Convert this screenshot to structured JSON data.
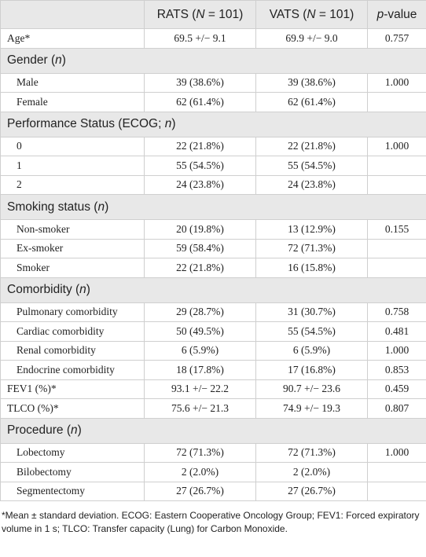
{
  "table": {
    "columns": [
      [
        "RATS (",
        "N",
        " = 101)"
      ],
      [
        "VATS (",
        "N",
        " = 101)"
      ],
      [
        "",
        "p",
        "-value"
      ]
    ],
    "rows": [
      {
        "cells": [
          "Age*",
          "69.5 +/− 9.1",
          "69.9 +/− 9.0",
          "0.757"
        ],
        "indent": false
      },
      {
        "section": [
          "Gender (",
          "n",
          ")"
        ]
      },
      {
        "cells": [
          "Male",
          "39 (38.6%)",
          "39 (38.6%)",
          "1.000"
        ],
        "indent": true
      },
      {
        "cells": [
          "Female",
          "62 (61.4%)",
          "62 (61.4%)"
        ],
        "indent": true
      },
      {
        "section": [
          "Performance Status (ECOG; ",
          "n",
          ")"
        ]
      },
      {
        "cells": [
          "0",
          "22 (21.8%)",
          "22 (21.8%)",
          "1.000"
        ],
        "indent": true
      },
      {
        "cells": [
          "1",
          "55 (54.5%)",
          "55 (54.5%)"
        ],
        "indent": true
      },
      {
        "cells": [
          "2",
          "24 (23.8%)",
          "24 (23.8%)"
        ],
        "indent": true
      },
      {
        "section": [
          "Smoking status (",
          "n",
          ")"
        ]
      },
      {
        "cells": [
          "Non-smoker",
          "20 (19.8%)",
          "13 (12.9%)",
          "0.155"
        ],
        "indent": true
      },
      {
        "cells": [
          "Ex-smoker",
          "59 (58.4%)",
          "72 (71.3%)"
        ],
        "indent": true
      },
      {
        "cells": [
          "Smoker",
          "22 (21.8%)",
          "16 (15.8%)"
        ],
        "indent": true
      },
      {
        "section": [
          "Comorbidity (",
          "n",
          ")"
        ]
      },
      {
        "cells": [
          "Pulmonary comorbidity",
          "29 (28.7%)",
          "31 (30.7%)",
          "0.758"
        ],
        "indent": true
      },
      {
        "cells": [
          "Cardiac comorbidity",
          "50 (49.5%)",
          "55 (54.5%)",
          "0.481"
        ],
        "indent": true
      },
      {
        "cells": [
          "Renal comorbidity",
          "6 (5.9%)",
          "6 (5.9%)",
          "1.000"
        ],
        "indent": true
      },
      {
        "cells": [
          "Endocrine comorbidity",
          "18 (17.8%)",
          "17 (16.8%)",
          "0.853"
        ],
        "indent": true
      },
      {
        "cells": [
          "FEV1 (%)*",
          "93.1 +/− 22.2",
          "90.7 +/− 23.6",
          "0.459"
        ],
        "indent": false
      },
      {
        "cells": [
          "TLCO (%)*",
          "75.6 +/− 21.3",
          "74.9 +/− 19.3",
          "0.807"
        ],
        "indent": false
      },
      {
        "section": [
          "Procedure (",
          "n",
          ")"
        ]
      },
      {
        "cells": [
          "Lobectomy",
          "72 (71.3%)",
          "72 (71.3%)",
          "1.000"
        ],
        "indent": true
      },
      {
        "cells": [
          "Bilobectomy",
          "2 (2.0%)",
          "2 (2.0%)"
        ],
        "indent": true
      },
      {
        "cells": [
          "Segmentectomy",
          "27 (26.7%)",
          "27 (26.7%)"
        ],
        "indent": true
      }
    ],
    "footnote": "*Mean ± standard deviation. ECOG: Eastern Cooperative Oncology Group; FEV1: Forced expiratory volume in 1 s; TLCO: Transfer capacity (Lung) for Carbon Monoxide."
  }
}
